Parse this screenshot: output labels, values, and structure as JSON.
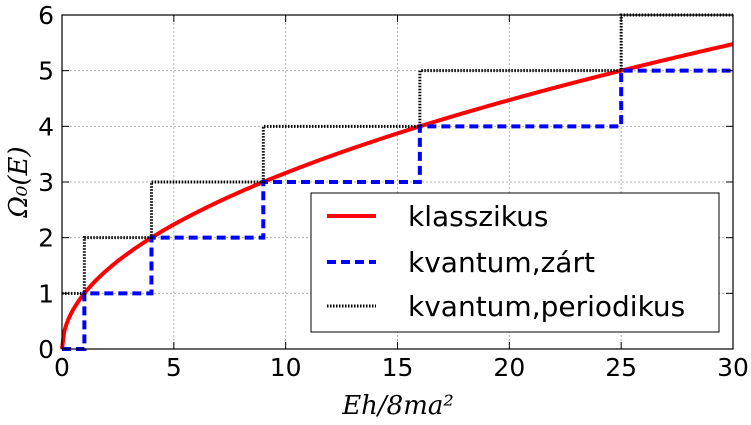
{
  "chart_data": {
    "type": "line",
    "xlabel": "Eh/8ma²",
    "ylabel": "Ω₀(E)",
    "xlim": [
      0,
      30
    ],
    "ylim": [
      0,
      6
    ],
    "x_ticks": [
      0,
      5,
      10,
      15,
      20,
      25,
      30
    ],
    "y_ticks": [
      0,
      1,
      2,
      3,
      4,
      5,
      6
    ],
    "x_tick_labels": [
      "0",
      "5",
      "10",
      "15",
      "20",
      "25",
      "30"
    ],
    "y_tick_labels": [
      "0",
      "1",
      "2",
      "3",
      "4",
      "5",
      "6"
    ],
    "grid": true,
    "legend_position": "lower-right",
    "series": [
      {
        "name": "klasszikus",
        "style": "solid",
        "color": "#ff0000",
        "function": "sqrt",
        "x": [
          0,
          0.25,
          1,
          2.25,
          4,
          6.25,
          9,
          12.25,
          16,
          20.25,
          25,
          30
        ],
        "y": [
          0,
          0.5,
          1,
          1.5,
          2,
          2.5,
          3,
          3.5,
          4,
          4.5,
          5,
          5.48
        ]
      },
      {
        "name": "kvantum,zárt",
        "style": "dashed",
        "color": "#0000ff",
        "step": true,
        "x": [
          0,
          1,
          4,
          9,
          16,
          25,
          30
        ],
        "y": [
          0,
          1,
          2,
          3,
          4,
          5,
          5
        ]
      },
      {
        "name": "kvantum,periodikus",
        "style": "dotted",
        "color": "#000000",
        "step": true,
        "x": [
          0,
          1,
          4,
          9,
          16,
          25,
          30
        ],
        "y": [
          1,
          2,
          3,
          4,
          5,
          6,
          6
        ]
      }
    ]
  }
}
